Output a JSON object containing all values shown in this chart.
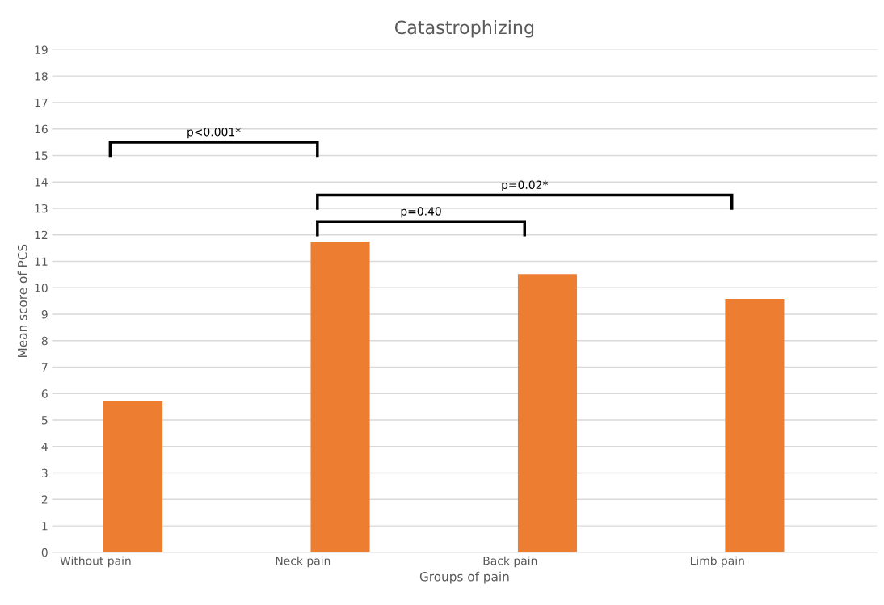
{
  "chart_data": {
    "type": "bar",
    "title": "Catastrophizing",
    "xlabel": "Groups of pain",
    "ylabel": "Mean score of PCS",
    "categories": [
      "Without pain",
      "Neck pain",
      "Back pain",
      "Limb pain"
    ],
    "values": [
      5.7,
      11.74,
      10.52,
      9.58
    ],
    "color": "#ed7d31",
    "ylim": [
      0,
      19
    ],
    "yticks": [
      0,
      1,
      2,
      3,
      4,
      5,
      6,
      7,
      8,
      9,
      10,
      11,
      12,
      13,
      14,
      15,
      16,
      17,
      18,
      19
    ],
    "grid": "y",
    "annotations": [
      "p<0.001*",
      "p=0.02*",
      "p=0.40"
    ]
  }
}
